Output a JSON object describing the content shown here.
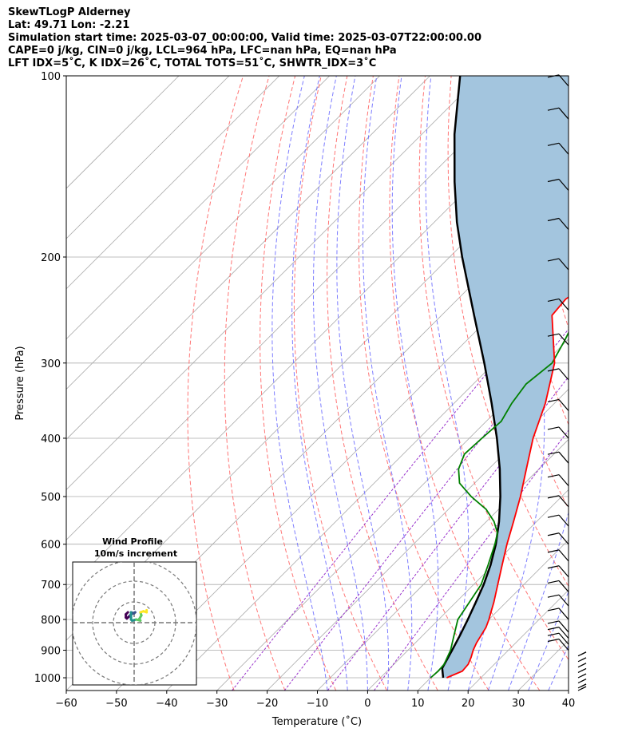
{
  "header": {
    "line1": "SkewTLogP Alderney",
    "line2": "Lat: 49.71   Lon: -2.21",
    "line3": "Simulation start time: 2025-03-07_00:00:00, Valid time: 2025-03-07T22:00:00.00",
    "line4": "CAPE=0 j/kg, CIN=0 j/kg, LCL=964 hPa, LFC=nan hPa, EQ=nan hPa",
    "line5": "LFT IDX=5˚C, K IDX=26˚C, TOTAL TOTS=51˚C, SHWTR_IDX=3˚C"
  },
  "chart_data": {
    "type": "line",
    "subtype": "skew-t log-p",
    "xlabel": "Temperature (˚C)",
    "ylabel": "Pressure (hPa)",
    "xlim": [
      -60,
      40
    ],
    "ylim": [
      1050,
      100
    ],
    "y_scale": "log",
    "xticks": [
      -60,
      -50,
      -40,
      -30,
      -20,
      -10,
      0,
      10,
      20,
      30,
      40
    ],
    "yticks": [
      1000,
      900,
      800,
      700,
      600,
      500,
      400,
      300,
      200,
      100
    ],
    "grid": true,
    "colors": {
      "temperature": "#ff0000",
      "dewpoint": "#008000",
      "parcel": "#000000",
      "shade": "#a3c5de",
      "dry_adiabat": "#ff6666",
      "moist_adiabat": "#6666ff",
      "mixing_ratio": "#9933cc",
      "isotherm": "#aaaaaa"
    },
    "series": [
      {
        "key": "temperature",
        "points": [
          [
            1000,
            13.2
          ],
          [
            975,
            15.0
          ],
          [
            950,
            14.8
          ],
          [
            925,
            14.0
          ],
          [
            900,
            13.0
          ],
          [
            875,
            12.2
          ],
          [
            850,
            11.6
          ],
          [
            825,
            11.0
          ],
          [
            800,
            10.0
          ],
          [
            775,
            8.8
          ],
          [
            750,
            7.6
          ],
          [
            700,
            4.8
          ],
          [
            650,
            1.8
          ],
          [
            600,
            -1.4
          ],
          [
            550,
            -4.6
          ],
          [
            500,
            -8.2
          ],
          [
            450,
            -12.5
          ],
          [
            400,
            -17.3
          ],
          [
            350,
            -21.8
          ],
          [
            300,
            -28.0
          ],
          [
            250,
            -38.0
          ],
          [
            235,
            -38.5
          ],
          [
            220,
            -37.0
          ],
          [
            200,
            -34.5
          ],
          [
            180,
            -30.5
          ],
          [
            170,
            -28.2
          ],
          [
            160,
            -27.0
          ],
          [
            150,
            -25.6
          ],
          [
            140,
            -24.3
          ],
          [
            130,
            -22.5
          ],
          [
            120,
            -20.2
          ],
          [
            110,
            -17.5
          ],
          [
            100,
            -15.5
          ]
        ]
      },
      {
        "key": "dewpoint",
        "points": [
          [
            1000,
            10.0
          ],
          [
            975,
            10.2
          ],
          [
            950,
            10.0
          ],
          [
            900,
            8.5
          ],
          [
            850,
            6.2
          ],
          [
            800,
            3.8
          ],
          [
            750,
            2.7
          ],
          [
            700,
            1.5
          ],
          [
            650,
            -1.0
          ],
          [
            600,
            -3.8
          ],
          [
            575,
            -5.5
          ],
          [
            550,
            -8.5
          ],
          [
            525,
            -12.5
          ],
          [
            500,
            -18.0
          ],
          [
            475,
            -23.0
          ],
          [
            450,
            -26.0
          ],
          [
            425,
            -27.8
          ],
          [
            400,
            -27.5
          ],
          [
            375,
            -27.0
          ],
          [
            350,
            -28.5
          ],
          [
            325,
            -29.5
          ],
          [
            300,
            -28.5
          ],
          [
            275,
            -30.5
          ],
          [
            250,
            -33.0
          ],
          [
            235,
            -35.0
          ],
          [
            220,
            -34.0
          ],
          [
            200,
            -33.0
          ],
          [
            190,
            -34.5
          ],
          [
            175,
            -42.0
          ],
          [
            165,
            -44.5
          ],
          [
            155,
            -42.0
          ],
          [
            140,
            -39.5
          ],
          [
            125,
            -35.5
          ],
          [
            110,
            -31.0
          ],
          [
            100,
            -28.5
          ]
        ]
      },
      {
        "key": "parcel",
        "points": [
          [
            1000,
            12.5
          ],
          [
            964,
            10.4
          ],
          [
            900,
            8.8
          ],
          [
            850,
            7.4
          ],
          [
            800,
            5.8
          ],
          [
            750,
            4.0
          ],
          [
            700,
            2.0
          ],
          [
            650,
            -0.5
          ],
          [
            600,
            -3.6
          ],
          [
            550,
            -7.5
          ],
          [
            500,
            -12.2
          ],
          [
            450,
            -17.8
          ],
          [
            400,
            -24.5
          ],
          [
            350,
            -32.5
          ],
          [
            300,
            -42.0
          ],
          [
            250,
            -53.5
          ],
          [
            200,
            -67.5
          ],
          [
            175,
            -75.5
          ],
          [
            150,
            -84.0
          ],
          [
            125,
            -93.5
          ],
          [
            100,
            -104.0
          ]
        ]
      }
    ],
    "wind_barbs": {
      "color": "#000000",
      "levels": [
        1050,
        1040,
        1020,
        1000,
        980,
        960,
        940,
        920,
        900,
        880,
        860,
        840,
        800,
        760,
        720,
        680,
        640,
        600,
        560,
        520,
        480,
        440,
        400,
        360,
        320,
        280,
        245,
        210,
        180,
        155,
        135,
        118,
        104
      ]
    },
    "inset": {
      "title": "Wind Profile",
      "subtitle": "10m/s increment",
      "type": "hodograph",
      "ring_speeds_ms": [
        10,
        20,
        30
      ],
      "colormap": "viridis",
      "trace_ms": [
        [
          -3.0,
          5.0
        ],
        [
          -4.0,
          4.0
        ],
        [
          -4.0,
          2.5
        ],
        [
          -3.5,
          2.0
        ],
        [
          -2.0,
          3.5
        ],
        [
          -1.5,
          4.0
        ],
        [
          0.5,
          5.0
        ],
        [
          0.0,
          4.5
        ],
        [
          -1.5,
          5.0
        ],
        [
          -1.5,
          2.5
        ],
        [
          -1.5,
          1.5
        ],
        [
          -1.0,
          1.0
        ],
        [
          1.0,
          1.5
        ],
        [
          3.0,
          1.0
        ],
        [
          2.5,
          1.8
        ],
        [
          3.5,
          3.5
        ],
        [
          3.0,
          5.0
        ],
        [
          4.5,
          5.5
        ],
        [
          6.0,
          5.0
        ],
        [
          6.0,
          6.0
        ]
      ]
    }
  }
}
